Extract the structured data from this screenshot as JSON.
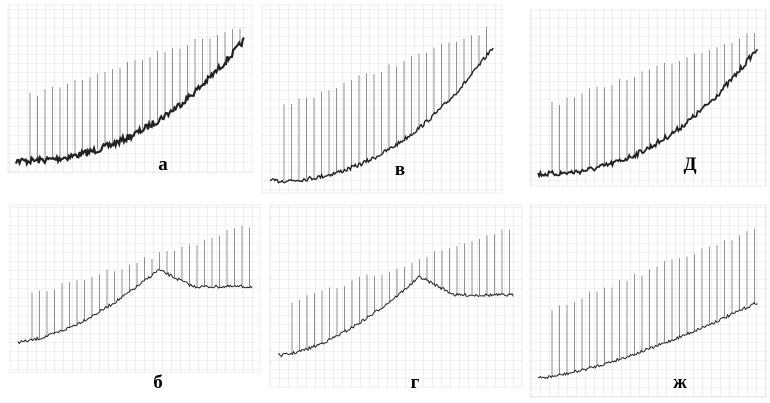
{
  "panels": [
    {
      "label": "а"
    },
    {
      "label": "в"
    },
    {
      "label": "Д"
    },
    {
      "label": "б"
    },
    {
      "label": "г"
    },
    {
      "label": "ж"
    }
  ]
}
